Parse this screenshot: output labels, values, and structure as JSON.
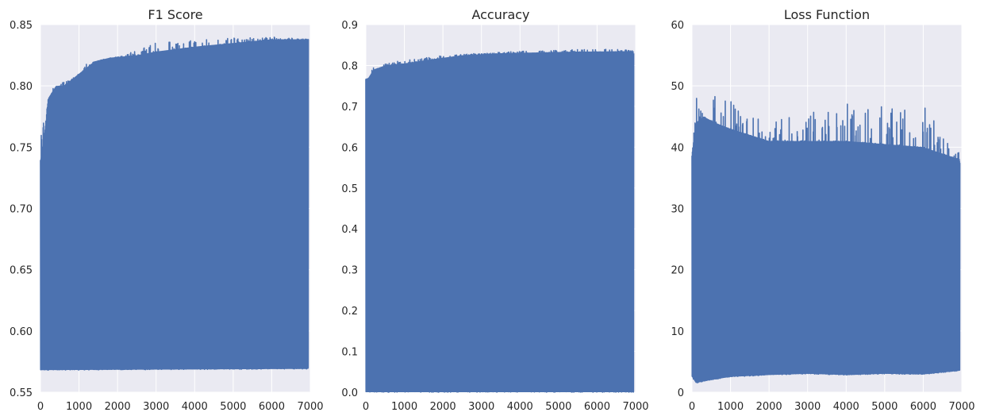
{
  "chart_data": [
    {
      "type": "line",
      "title": "F1 Score",
      "xlabel": "",
      "ylabel": "",
      "xlim": [
        0,
        7000
      ],
      "ylim": [
        0.55,
        0.85
      ],
      "xticks": [
        0,
        1000,
        2000,
        3000,
        4000,
        5000,
        6000,
        7000
      ],
      "yticks": [
        0.55,
        0.6,
        0.65,
        0.7,
        0.75,
        0.8,
        0.85
      ],
      "ytick_labels": [
        "0.55",
        "0.60",
        "0.65",
        "0.70",
        "0.75",
        "0.80",
        "0.85"
      ],
      "grid": true,
      "series": [
        {
          "color": "#4c72b0",
          "x_range": [
            0,
            6950
          ],
          "upper_envelope": {
            "x": [
              0,
              100,
              200,
              400,
              600,
              800,
              1000,
              1400,
              1800,
              2500,
              3000,
              4000,
              5000,
              6000,
              6950
            ],
            "y": [
              0.74,
              0.76,
              0.79,
              0.8,
              0.8,
              0.805,
              0.81,
              0.82,
              0.823,
              0.825,
              0.828,
              0.832,
              0.835,
              0.838,
              0.838
            ]
          },
          "lower_envelope": {
            "x": [
              0,
              6950
            ],
            "y": [
              0.568,
              0.569
            ]
          },
          "peak_envelope": {
            "x": [
              0,
              50,
              150,
              300,
              800,
              1200,
              2000,
              3000,
              4000,
              6000,
              6950
            ],
            "y": [
              0.766,
              0.766,
              0.78,
              0.8,
              0.805,
              0.818,
              0.823,
              0.835,
              0.838,
              0.84,
              0.838
            ]
          }
        }
      ]
    },
    {
      "type": "line",
      "title": "Accuracy",
      "xlabel": "",
      "ylabel": "",
      "xlim": [
        0,
        7000
      ],
      "ylim": [
        0.0,
        0.9
      ],
      "xticks": [
        0,
        1000,
        2000,
        3000,
        4000,
        5000,
        6000,
        7000
      ],
      "yticks": [
        0.0,
        0.1,
        0.2,
        0.3,
        0.4,
        0.5,
        0.6,
        0.7,
        0.8,
        0.9
      ],
      "ytick_labels": [
        "0.0",
        "0.1",
        "0.2",
        "0.3",
        "0.4",
        "0.5",
        "0.6",
        "0.7",
        "0.8",
        "0.9"
      ],
      "grid": true,
      "series": [
        {
          "color": "#4c72b0",
          "x_range": [
            0,
            6950
          ],
          "upper_envelope": {
            "x": [
              0,
              200,
              500,
              1000,
              1700,
              2500,
              3500,
              4500,
              5500,
              6950
            ],
            "y": [
              0.76,
              0.79,
              0.8,
              0.805,
              0.815,
              0.825,
              0.83,
              0.832,
              0.834,
              0.835
            ]
          },
          "lower_envelope": {
            "x": [
              0,
              6950
            ],
            "y": [
              0.0,
              0.0
            ]
          },
          "peak_envelope": {
            "x": [
              0,
              200,
              500,
              1000,
              2000,
              3000,
              4000,
              6000,
              6950
            ],
            "y": [
              0.78,
              0.8,
              0.81,
              0.812,
              0.825,
              0.83,
              0.835,
              0.84,
              0.838
            ]
          }
        }
      ]
    },
    {
      "type": "line",
      "title": "Loss Function",
      "xlabel": "",
      "ylabel": "",
      "xlim": [
        0,
        7000
      ],
      "ylim": [
        0,
        60
      ],
      "xticks": [
        0,
        1000,
        2000,
        3000,
        4000,
        5000,
        6000,
        7000
      ],
      "yticks": [
        0,
        10,
        20,
        30,
        40,
        50,
        60
      ],
      "ytick_labels": [
        "0",
        "10",
        "20",
        "30",
        "40",
        "50",
        "60"
      ],
      "grid": true,
      "series": [
        {
          "color": "#4c72b0",
          "x_range": [
            0,
            6950
          ],
          "upper_envelope": {
            "x": [
              0,
              100,
              300,
              600,
              1000,
              1500,
              2000,
              3000,
              4000,
              5000,
              6000,
              6950
            ],
            "y": [
              39,
              44,
              45,
              44,
              43,
              42,
              41,
              41,
              41,
              40.5,
              40,
              38
            ]
          },
          "lower_envelope": {
            "x": [
              0,
              100,
              500,
              1000,
              2000,
              3000,
              4000,
              5000,
              6000,
              6950
            ],
            "y": [
              2.5,
              1.5,
              2.0,
              2.5,
              2.8,
              3.0,
              2.8,
              3.0,
              2.9,
              3.5
            ]
          },
          "peak_envelope": {
            "x": [
              0,
              100,
              200,
              400,
              600,
              900,
              1200,
              2000,
              3000,
              4000,
              5000,
              6000,
              6950
            ],
            "y": [
              39,
              50,
              53.5,
              50,
              49,
              49,
              46,
              44,
              46,
              47,
              48,
              47,
              39
            ]
          }
        }
      ]
    }
  ]
}
